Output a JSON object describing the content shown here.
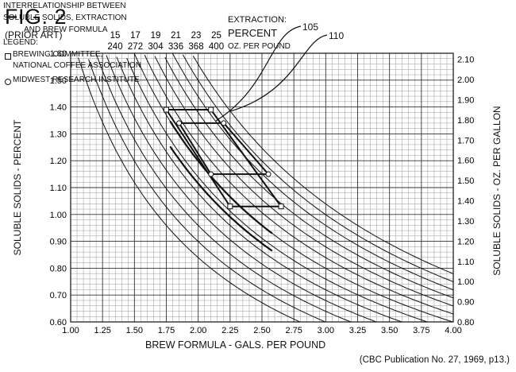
{
  "figure": {
    "title": "FIG. 2",
    "subtitle": "(PRIOR ART)",
    "source_note": "(CBC Publication No. 27, 1969, p13.)"
  },
  "extraction_header": {
    "title": "EXTRACTION:",
    "unit_1": "PERCENT",
    "unit_2": "OZ. PER POUND",
    "percent_labels": [
      "15",
      "17",
      "19",
      "21",
      "23",
      "25"
    ],
    "ozlb_labels": [
      "240",
      "272",
      "304",
      "336",
      "368",
      "400"
    ]
  },
  "callouts": {
    "label_105": "105",
    "label_110": "110"
  },
  "legend": {
    "title_lines": [
      "INTERRELATIONSHIP BETWEEN",
      "SOLUBLE SOLIDS, EXTRACTION",
      "AND BREW FORMULA"
    ],
    "heading": "LEGEND:",
    "entries": [
      {
        "symbol": "square-marker",
        "lines": [
          "BREWING COMMITTEE,",
          "NATIONAL COFFEE ASSOCIATION"
        ]
      },
      {
        "symbol": "circle-marker",
        "lines": [
          "MIDWEST RESEARCH INSTITUTE"
        ]
      }
    ]
  },
  "chart_data": {
    "type": "line",
    "xlabel": "BREW FORMULA - GALS. PER POUND",
    "ylabel": "SOLUBLE SOLIDS - PERCENT",
    "y2label": "SOLUBLE SOLIDS - OZ. PER GALLON",
    "xlim": [
      1.0,
      4.0
    ],
    "ylim": [
      0.6,
      1.6
    ],
    "y2lim": [
      0.8,
      2.13
    ],
    "grid": true,
    "legend_position": "top-right",
    "x_ticks": [
      "1.00",
      "1.25",
      "1.50",
      "1.75",
      "2.00",
      "2.25",
      "2.50",
      "2.75",
      "3.00",
      "3.25",
      "3.50",
      "3.75",
      "4.00"
    ],
    "y_ticks": [
      "0.60",
      "0.70",
      "0.80",
      "0.90",
      "1.00",
      "1.10",
      "1.20",
      "1.30",
      "1.40",
      "1.50",
      "1.60"
    ],
    "y2_ticks": [
      "0.80",
      "0.90",
      "1.00",
      "1.10",
      "1.20",
      "1.30",
      "1.40",
      "1.50",
      "1.60",
      "1.70",
      "1.80",
      "1.90",
      "2.00",
      "2.10"
    ],
    "extraction_curves_percent": [
      14,
      15,
      16,
      17,
      18,
      19,
      20,
      21,
      22,
      23,
      24,
      25,
      26
    ],
    "curve_model": "soluble solids % = extraction % / (8.34 x gals per pound)",
    "brewing_committee_region": [
      [
        1.75,
        1.39
      ],
      [
        2.1,
        1.39
      ],
      [
        2.65,
        1.03
      ],
      [
        2.25,
        1.03
      ]
    ],
    "midwest_region": [
      [
        1.85,
        1.34
      ],
      [
        2.2,
        1.34
      ],
      [
        2.55,
        1.15
      ],
      [
        2.1,
        1.15
      ]
    ],
    "committee_squares": [
      [
        1.75,
        1.39
      ],
      [
        2.1,
        1.39
      ],
      [
        2.25,
        1.03
      ],
      [
        2.65,
        1.03
      ]
    ],
    "midwest_circles": [
      [
        1.85,
        1.34
      ],
      [
        2.2,
        1.34
      ],
      [
        2.1,
        1.15
      ],
      [
        2.55,
        1.15
      ]
    ]
  }
}
